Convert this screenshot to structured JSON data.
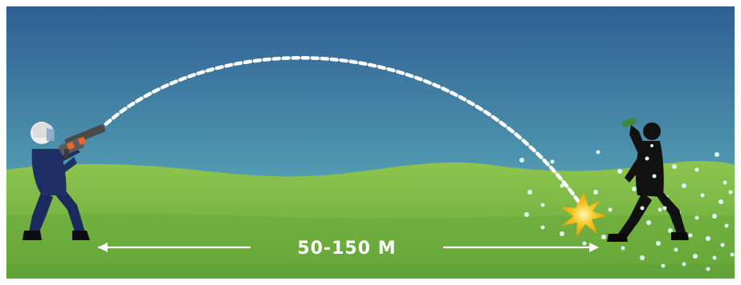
{
  "distance": {
    "label": "50-150 M"
  },
  "colors": {
    "sky_top": "#2f5f93",
    "sky_bottom": "#6fc7c8",
    "grass_light": "#8dc44e",
    "grass": "#74b33f",
    "grass_dark": "#5fa035",
    "shooter_uniform": "#1b2a5e",
    "target_figure": "#111111",
    "trajectory": "#ffffff",
    "impact_flash": "#f5c21a",
    "gas_cloud": "#d9f4f2"
  },
  "icons": {
    "shooter": "riot-officer-with-launcher-icon",
    "target": "protester-throwing-icon",
    "impact": "explosion-burst-icon",
    "gas": "tear-gas-cloud-icon"
  }
}
